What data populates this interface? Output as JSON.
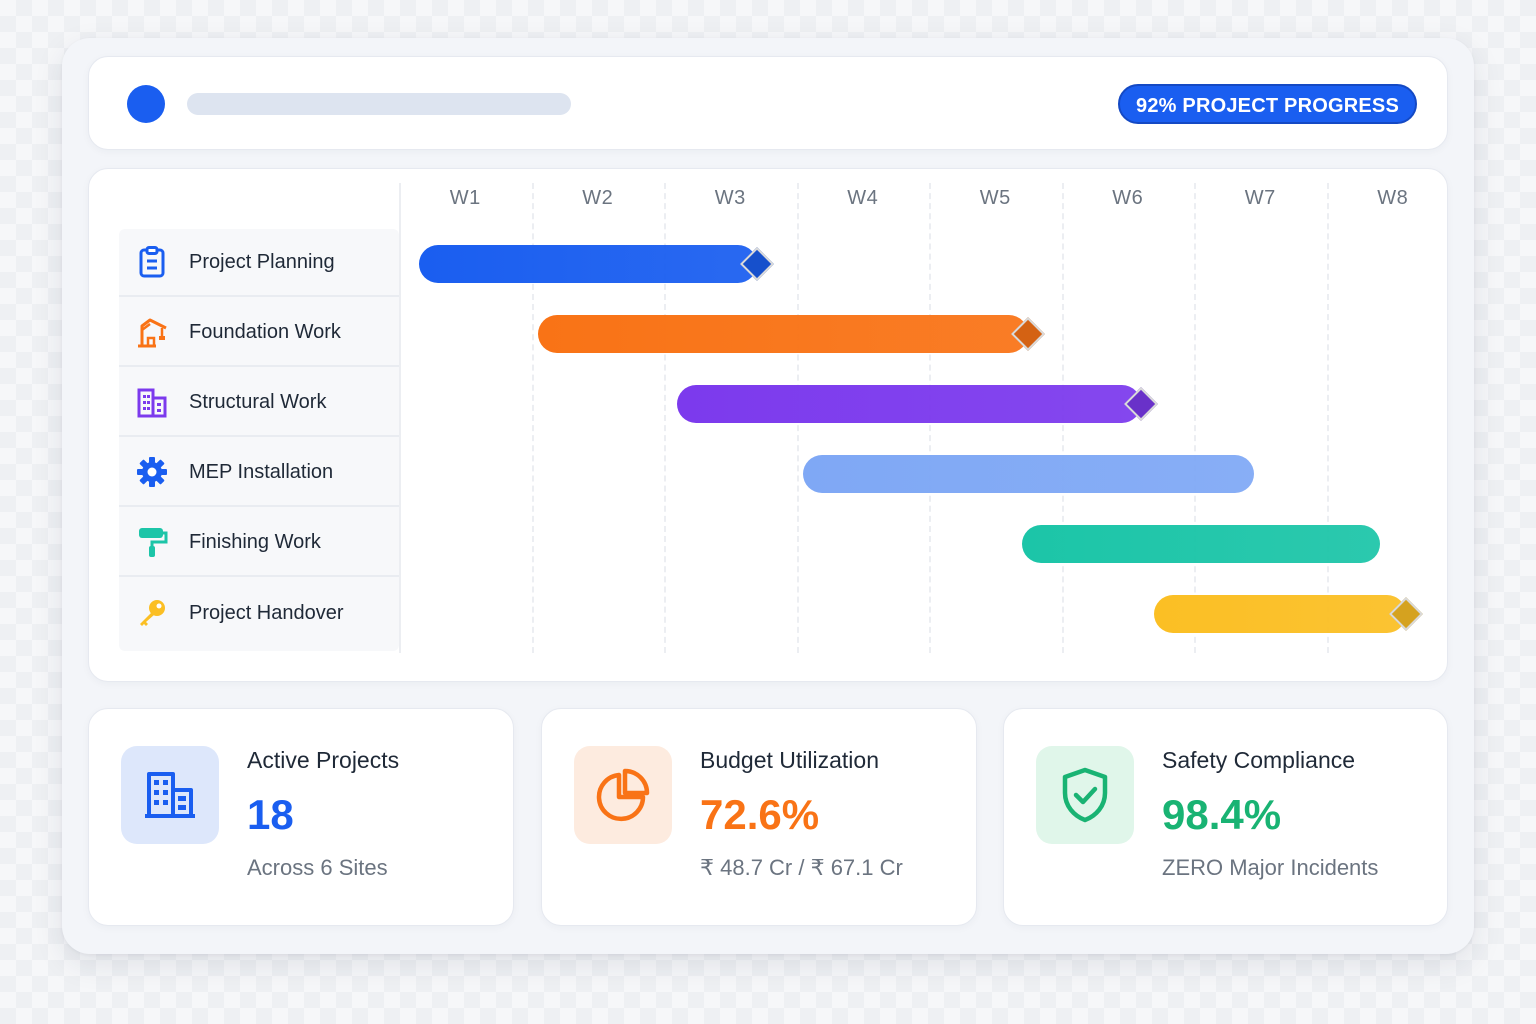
{
  "header": {
    "progress_pill": "92% PROJECT PROGRESS",
    "accent": "#1a5ef0"
  },
  "gantt": {
    "weeks": [
      "W1",
      "W2",
      "W3",
      "W4",
      "W5",
      "W6",
      "W7",
      "W8"
    ],
    "tasks": [
      {
        "label": "Project Planning",
        "icon": "clipboard-icon",
        "color": "#1a5ef0",
        "start_week": 1.15,
        "end_week": 3.7,
        "milestone": true
      },
      {
        "label": "Foundation Work",
        "icon": "crane-icon",
        "color": "#f97316",
        "start_week": 2.05,
        "end_week": 5.75,
        "milestone": true
      },
      {
        "label": "Structural Work",
        "icon": "building-icon",
        "color": "#7c3aed",
        "start_week": 3.1,
        "end_week": 6.6,
        "milestone": true
      },
      {
        "label": "MEP Installation",
        "icon": "gear-icon",
        "color": "#7fa8f5",
        "start_week": 4.05,
        "end_week": 7.45,
        "milestone": false
      },
      {
        "label": "Finishing Work",
        "icon": "paint-roller-icon",
        "color": "#1cc5a8",
        "start_week": 5.7,
        "end_week": 8.4,
        "milestone": false
      },
      {
        "label": "Project Handover",
        "icon": "key-icon",
        "color": "#fbbf24",
        "start_week": 6.7,
        "end_week": 8.6,
        "milestone": true
      }
    ]
  },
  "stats": [
    {
      "title": "Active Projects",
      "value": "18",
      "sub": "Across 6 Sites",
      "icon": "buildings-icon",
      "color": "#1a5ef0",
      "bg": "#dde7fb"
    },
    {
      "title": "Budget Utilization",
      "value": "72.6%",
      "sub": "₹ 48.7 Cr / ₹ 67.1 Cr",
      "icon": "pie-chart-icon",
      "color": "#f97316",
      "bg": "#fdebdf"
    },
    {
      "title": "Safety Compliance",
      "value": "98.4%",
      "sub": "ZERO Major Incidents",
      "icon": "shield-check-icon",
      "color": "#19b373",
      "bg": "#e0f6ea"
    }
  ]
}
